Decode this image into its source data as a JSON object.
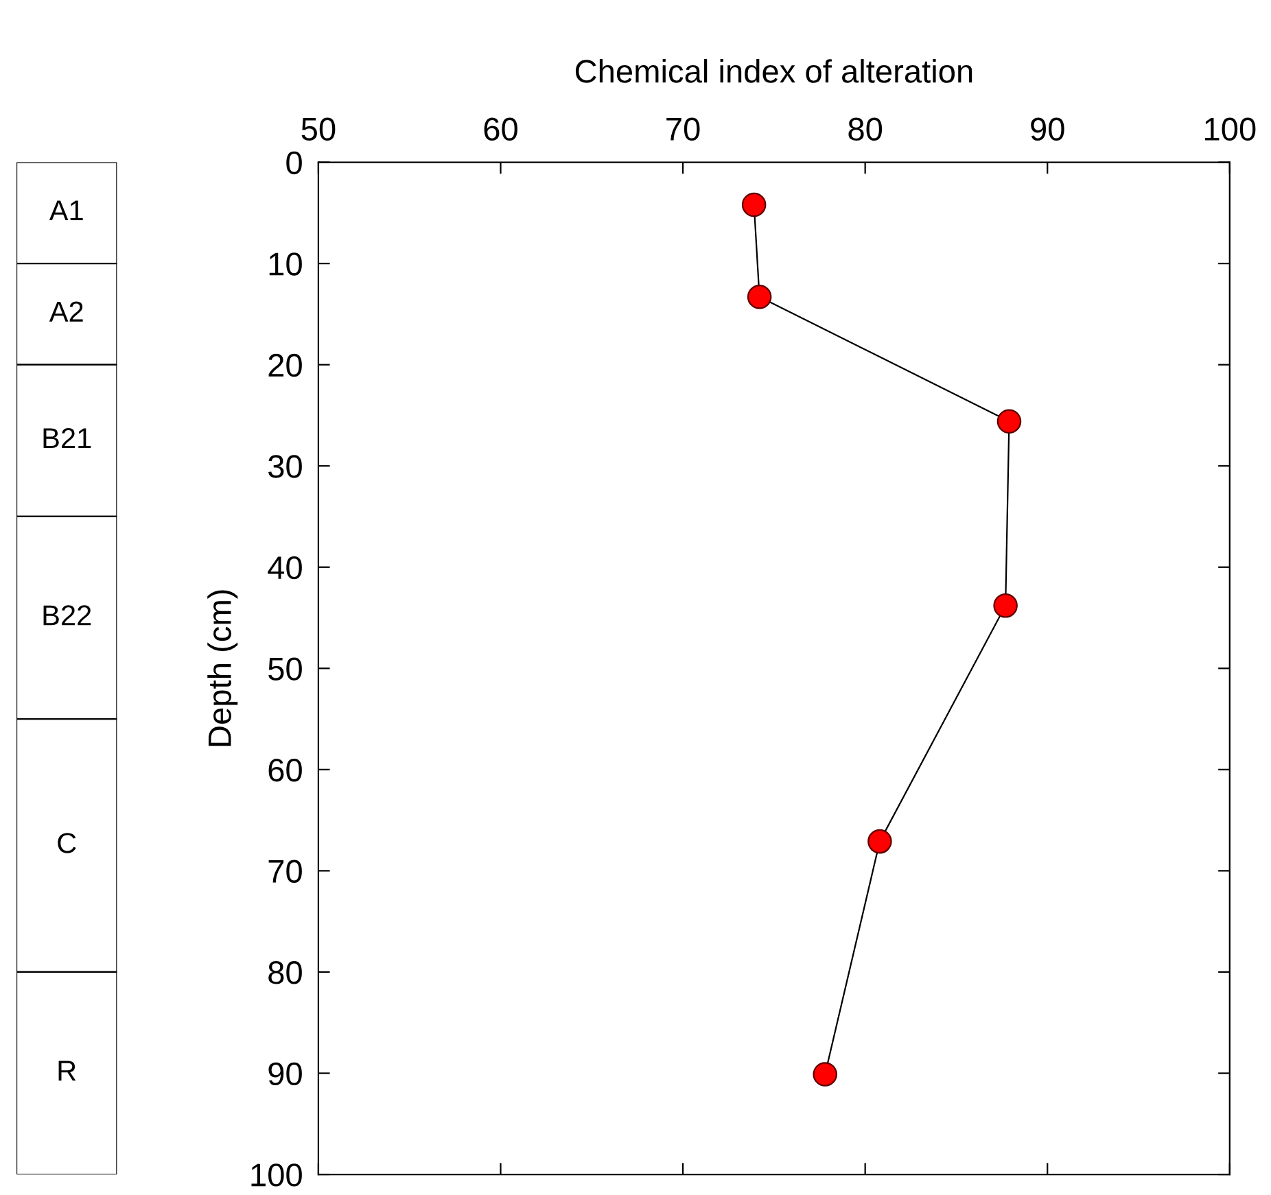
{
  "chart_data": [
    {
      "type": "bar",
      "stacked": true,
      "categories": [
        null
      ],
      "ylim": [
        100,
        0
      ],
      "tick_labels": false,
      "series": [
        {
          "name": "A1",
          "color": "#ffffff",
          "values": [
            10
          ]
        },
        {
          "name": "A2",
          "color": "#ffffff",
          "values": [
            10
          ]
        },
        {
          "name": "B21",
          "color": "#ffffff",
          "values": [
            15
          ]
        },
        {
          "name": "B22",
          "color": "#ffffff",
          "values": [
            20
          ]
        },
        {
          "name": "C",
          "color": "#ffffff",
          "values": [
            25
          ]
        },
        {
          "name": "R",
          "color": "#ffffff",
          "values": [
            20
          ]
        }
      ]
    },
    {
      "type": "line",
      "xlabel": "Chemical index of alteration",
      "ylabel": "Depth (cm)",
      "series": [
        {
          "color": "#ff0000",
          "x": [
            73.9,
            74.2,
            87.9,
            87.7,
            80.8,
            77.8
          ],
          "values": [
            4.2,
            13.3,
            25.6,
            43.8,
            67.1,
            90.1
          ]
        }
      ],
      "xlim": [
        50,
        100
      ],
      "xticks": [
        50,
        60,
        70,
        80,
        90,
        100
      ],
      "ylim": [
        100,
        0
      ],
      "yticks": [
        0,
        10,
        20,
        30,
        40,
        50,
        60,
        70,
        80,
        90,
        100
      ],
      "marker": "circle",
      "line_style": "solid"
    }
  ]
}
